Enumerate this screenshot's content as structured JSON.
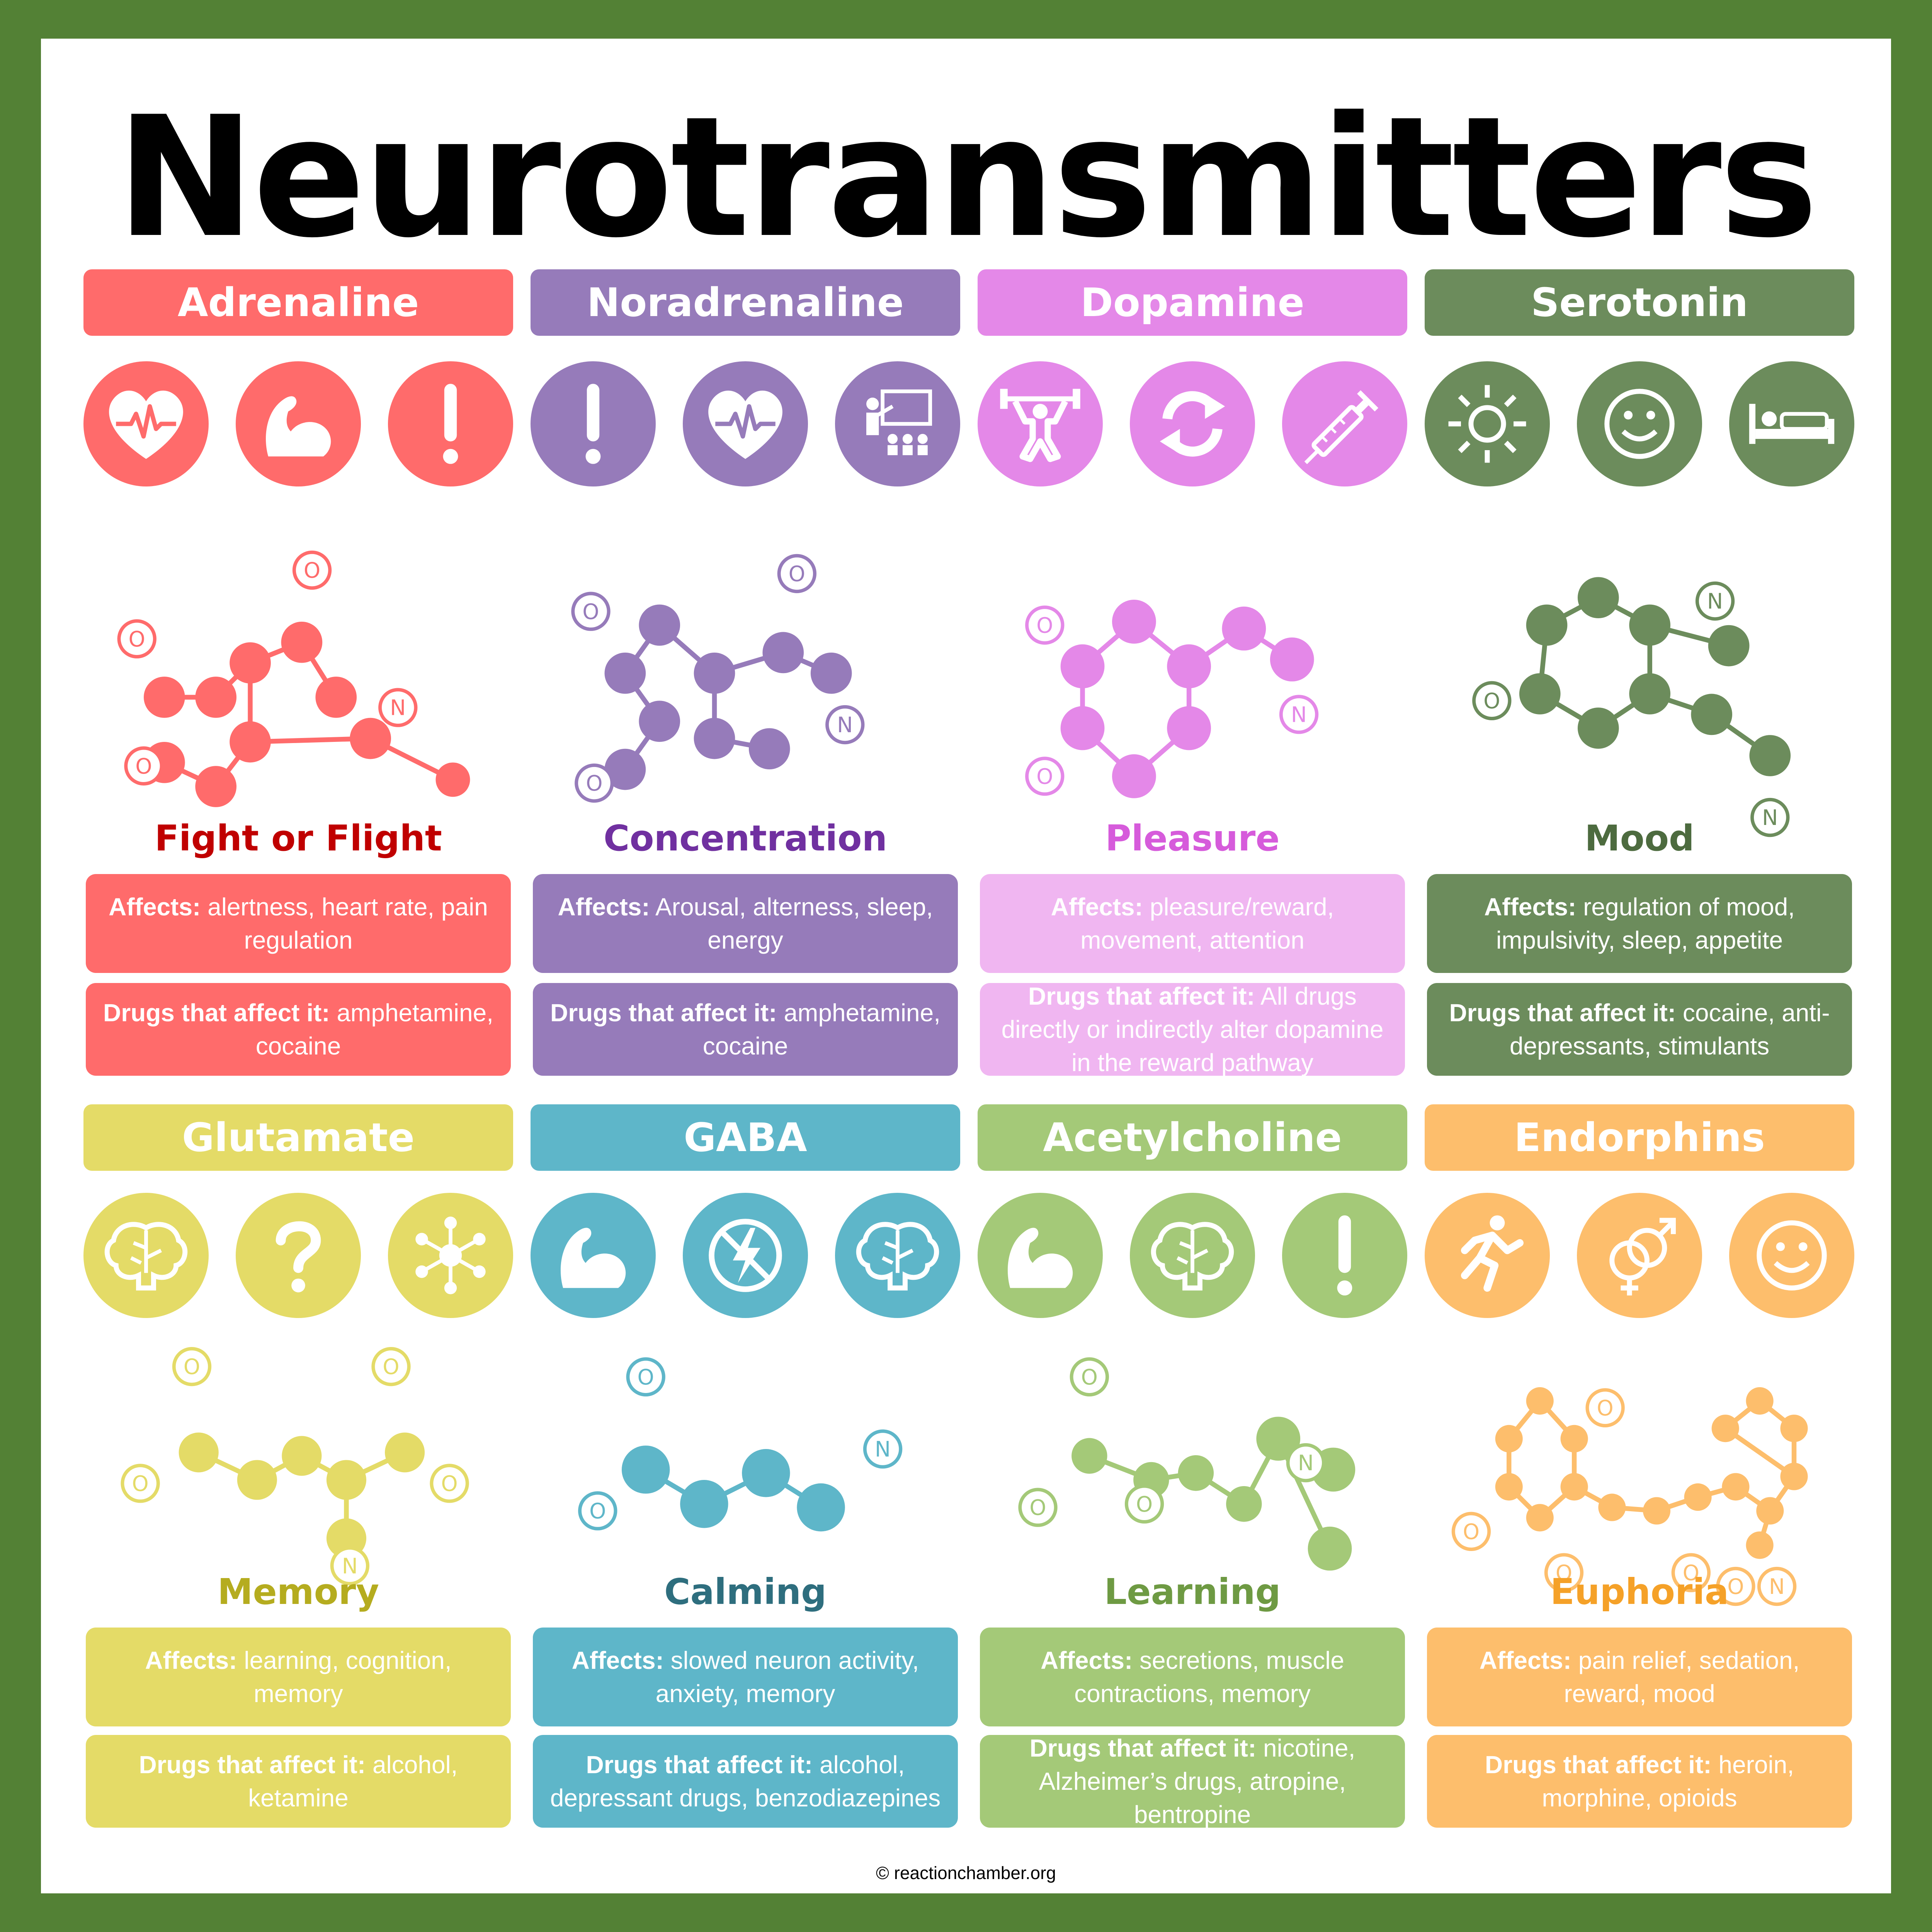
{
  "title": "Neurotransmitters",
  "footer": "© reactionchamber.org",
  "transmitters": [
    {
      "name": "Adrenaline",
      "color": "#FF6B6B",
      "role_color": "#C00000",
      "role": "Fight or Flight",
      "affects_label": "Affects:",
      "affects": "alertness, heart rate, pain regulation",
      "drugs_label": "Drugs that affect it:",
      "drugs": "amphetamine, cocaine",
      "icons": [
        "heart-rate-icon",
        "flexed-arm-icon",
        "exclamation-icon"
      ]
    },
    {
      "name": "Noradrenaline",
      "color": "#967BBA",
      "role_color": "#7030A0",
      "role": "Concentration",
      "affects_label": "Affects:",
      "affects": "Arousal, alterness, sleep, energy",
      "drugs_label": "Drugs that affect it:",
      "drugs": "amphetamine, cocaine",
      "icons": [
        "exclamation-icon",
        "heart-rate-icon",
        "teacher-icon"
      ]
    },
    {
      "name": "Dopamine",
      "color": "#E488E8",
      "role_color": "#D65BDB",
      "role": "Pleasure",
      "box_color": "#F0B6F1",
      "affects_label": "Affects:",
      "affects": "pleasure/reward, movement, attention",
      "drugs_label": "Drugs that affect it:",
      "drugs": "All drugs directly or indirectly alter dopamine in the reward pathway",
      "icons": [
        "weightlifter-icon",
        "refresh-icon",
        "syringe-icon"
      ]
    },
    {
      "name": "Serotonin",
      "color": "#6C8C5C",
      "role_color": "#4D6B3F",
      "role": "Mood",
      "affects_label": "Affects:",
      "affects": "regulation of mood, impulsivity, sleep, appetite",
      "drugs_label": "Drugs that affect it:",
      "drugs": "cocaine, anti-depressants, stimulants",
      "icons": [
        "sun-icon",
        "smiley-icon",
        "bed-icon"
      ]
    },
    {
      "name": "Glutamate",
      "color": "#E4DB67",
      "role_color": "#B5AC1F",
      "role": "Memory",
      "affects_label": "Affects:",
      "affects": "learning, cognition, memory",
      "drugs_label": "Drugs that affect it:",
      "drugs": "alcohol, ketamine",
      "icons": [
        "brain-icon",
        "question-mark-icon",
        "network-icon"
      ]
    },
    {
      "name": "GABA",
      "color": "#5EB6C9",
      "role_color": "#2E6E7E",
      "role": "Calming",
      "affects_label": "Affects:",
      "affects": "slowed neuron activity, anxiety, memory",
      "drugs_label": "Drugs that affect it:",
      "drugs": "alcohol, depressant drugs, benzodiazepines",
      "icons": [
        "flexed-arm-icon",
        "no-lightning-icon",
        "brain-icon"
      ]
    },
    {
      "name": "Acetylcholine",
      "color": "#A4C978",
      "role_color": "#6E9A43",
      "role": "Learning",
      "affects_label": "Affects:",
      "affects": "secretions, muscle contractions, memory",
      "drugs_label": "Drugs that affect it:",
      "drugs": "nicotine, Alzheimer’s drugs, atropine, bentropine",
      "icons": [
        "flexed-arm-icon",
        "brain-icon",
        "exclamation-icon"
      ]
    },
    {
      "name": "Endorphins",
      "color": "#FDBE6C",
      "role_color": "#F5A128",
      "role": "Euphoria",
      "affects_label": "Affects:",
      "affects": "pain relief, sedation, reward, mood",
      "drugs_label": "Drugs that affect it:",
      "drugs": "heroin, morphine, opioids",
      "icons": [
        "runner-icon",
        "gender-symbols-icon",
        "smiley-icon"
      ]
    }
  ]
}
